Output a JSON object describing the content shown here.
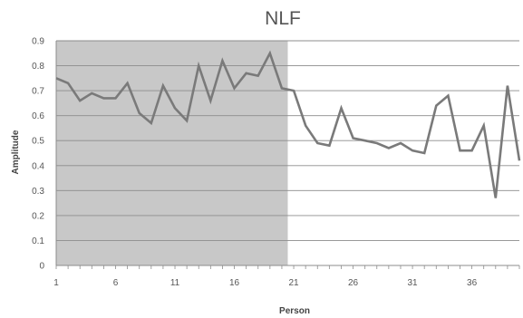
{
  "chart_data": {
    "type": "line",
    "title": "NLF",
    "xlabel": "Person",
    "ylabel": "Amplitude",
    "xlim": [
      1,
      40
    ],
    "ylim": [
      0,
      0.9
    ],
    "yticks": [
      "0",
      "0.1",
      "0.2",
      "0.3",
      "0.4",
      "0.5",
      "0.6",
      "0.7",
      "0.8",
      "0.9"
    ],
    "xticks": [
      "1",
      "6",
      "11",
      "16",
      "21",
      "26",
      "31",
      "36"
    ],
    "x": [
      1,
      2,
      3,
      4,
      5,
      6,
      7,
      8,
      9,
      10,
      11,
      12,
      13,
      14,
      15,
      16,
      17,
      18,
      19,
      20,
      21,
      22,
      23,
      24,
      25,
      26,
      27,
      28,
      29,
      30,
      31,
      32,
      33,
      34,
      35,
      36,
      37,
      38,
      39,
      40
    ],
    "series": [
      {
        "values": [
          0.75,
          0.73,
          0.66,
          0.69,
          0.67,
          0.67,
          0.73,
          0.61,
          0.57,
          0.72,
          0.63,
          0.58,
          0.8,
          0.66,
          0.82,
          0.71,
          0.77,
          0.76,
          0.85,
          0.71,
          0.7,
          0.56,
          0.49,
          0.48,
          0.63,
          0.51,
          0.5,
          0.49,
          0.47,
          0.49,
          0.46,
          0.45,
          0.64,
          0.68,
          0.46,
          0.46,
          0.56,
          0.27,
          0.72,
          0.42
        ],
        "color": "#7a7a7a"
      }
    ],
    "shaded_region": {
      "x_start": 1,
      "x_end": 20.5,
      "color": "#c8c8c8"
    },
    "grid": true,
    "legend": "none"
  }
}
